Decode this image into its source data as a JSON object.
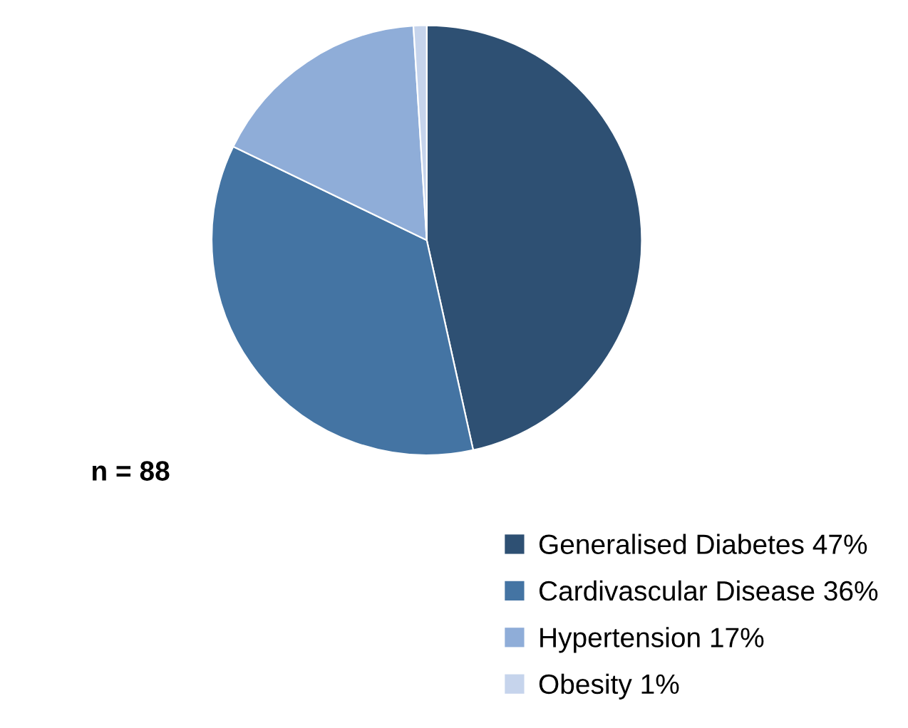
{
  "chart_data": {
    "type": "pie",
    "categories": [
      "Generalised Diabetes",
      "Cardivascular Disease",
      "Hypertension",
      "Obesity"
    ],
    "values": [
      47,
      36,
      17,
      1
    ],
    "value_labels": [
      "47%",
      "36%",
      "17%",
      "1%"
    ],
    "colors": [
      "#2e5073",
      "#4474a3",
      "#8fadd8",
      "#c6d4ec"
    ],
    "legend": "bottom right",
    "annotations": [
      "n = 88"
    ]
  }
}
